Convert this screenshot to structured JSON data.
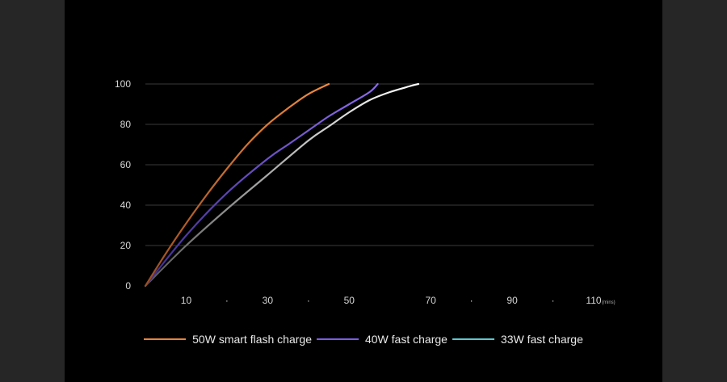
{
  "chart_data": {
    "type": "line",
    "xlabel": "",
    "ylabel": "",
    "x_unit": "(mins)",
    "xlim": [
      0,
      110
    ],
    "ylim": [
      0,
      100
    ],
    "y_ticks": [
      "0",
      "20",
      "40",
      "60",
      "80",
      "100"
    ],
    "x_ticks": [
      "10",
      "·",
      "30",
      "·",
      "50",
      "70",
      "·",
      "90",
      "·",
      "110"
    ],
    "x_tick_values": [
      10,
      20,
      30,
      40,
      50,
      70,
      80,
      90,
      100,
      110
    ],
    "grid": true,
    "legend_position": "bottom",
    "series": [
      {
        "name": "50W smart flash charge",
        "color": "#e8843c",
        "points": [
          [
            0,
            0
          ],
          [
            5,
            16
          ],
          [
            10,
            31
          ],
          [
            15,
            45
          ],
          [
            20,
            58
          ],
          [
            25,
            70
          ],
          [
            30,
            80
          ],
          [
            35,
            88
          ],
          [
            40,
            95
          ],
          [
            45,
            100
          ]
        ]
      },
      {
        "name": "40W fast charge",
        "color": "#7b5ce6",
        "points": [
          [
            0,
            0
          ],
          [
            10,
            25
          ],
          [
            20,
            46
          ],
          [
            30,
            63
          ],
          [
            35,
            70
          ],
          [
            40,
            77
          ],
          [
            45,
            84
          ],
          [
            50,
            90
          ],
          [
            55,
            96
          ],
          [
            57,
            100
          ]
        ]
      },
      {
        "name": "33W fast charge",
        "color": "#5ec8d0",
        "points": [
          [
            0,
            0
          ],
          [
            10,
            20
          ],
          [
            20,
            38
          ],
          [
            30,
            55
          ],
          [
            40,
            72
          ],
          [
            45,
            79
          ],
          [
            50,
            86
          ],
          [
            55,
            92
          ],
          [
            60,
            96
          ],
          [
            65,
            99
          ],
          [
            67,
            100
          ]
        ]
      }
    ]
  }
}
